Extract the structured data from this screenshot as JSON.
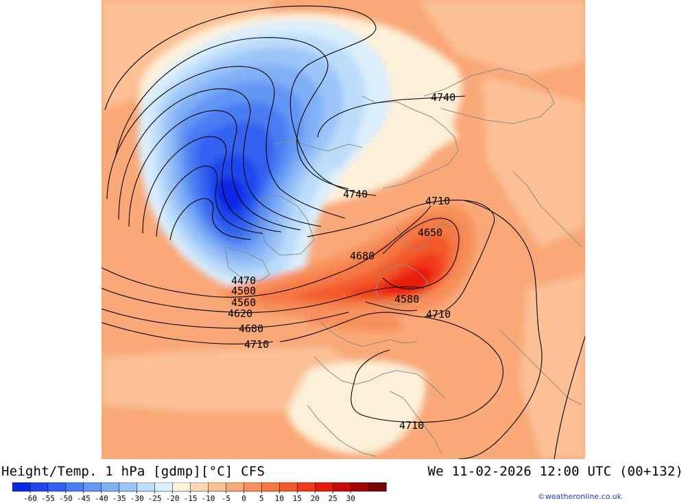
{
  "title": {
    "left": "Height/Temp. 1 hPa [gdmp][°C] CFS",
    "right": "We 11-02-2026 12:00 UTC (00+132)"
  },
  "credit": "©weatheronline.co.uk",
  "legend": {
    "colors": [
      "#0a28e6",
      "#1e46ec",
      "#3260f0",
      "#4a7cf2",
      "#6496f4",
      "#80aff6",
      "#9cc4f8",
      "#bcdcfa",
      "#daeefc",
      "#fdf0d8",
      "#fdd6b4",
      "#fbc094",
      "#f9a878",
      "#f7905c",
      "#f57844",
      "#f35a2c",
      "#f03a1a",
      "#e81a0e",
      "#c80a06",
      "#a00604",
      "#780404"
    ],
    "labels": [
      "-60",
      "-55",
      "-50",
      "-45",
      "-40",
      "-35",
      "-30",
      "-25",
      "-20",
      "-15",
      "-10",
      "-5",
      "0",
      "5",
      "10",
      "15",
      "20",
      "25",
      "30"
    ]
  },
  "contours": {
    "labels": [
      {
        "text": "4740"
      },
      {
        "text": "4740"
      },
      {
        "text": "4710"
      },
      {
        "text": "4650"
      },
      {
        "text": "4680"
      },
      {
        "text": "4470"
      },
      {
        "text": "4500"
      },
      {
        "text": "4560"
      },
      {
        "text": "4620"
      },
      {
        "text": "4680"
      },
      {
        "text": "4710"
      },
      {
        "text": "4580"
      },
      {
        "text": "4710"
      },
      {
        "text": "4710"
      }
    ]
  }
}
